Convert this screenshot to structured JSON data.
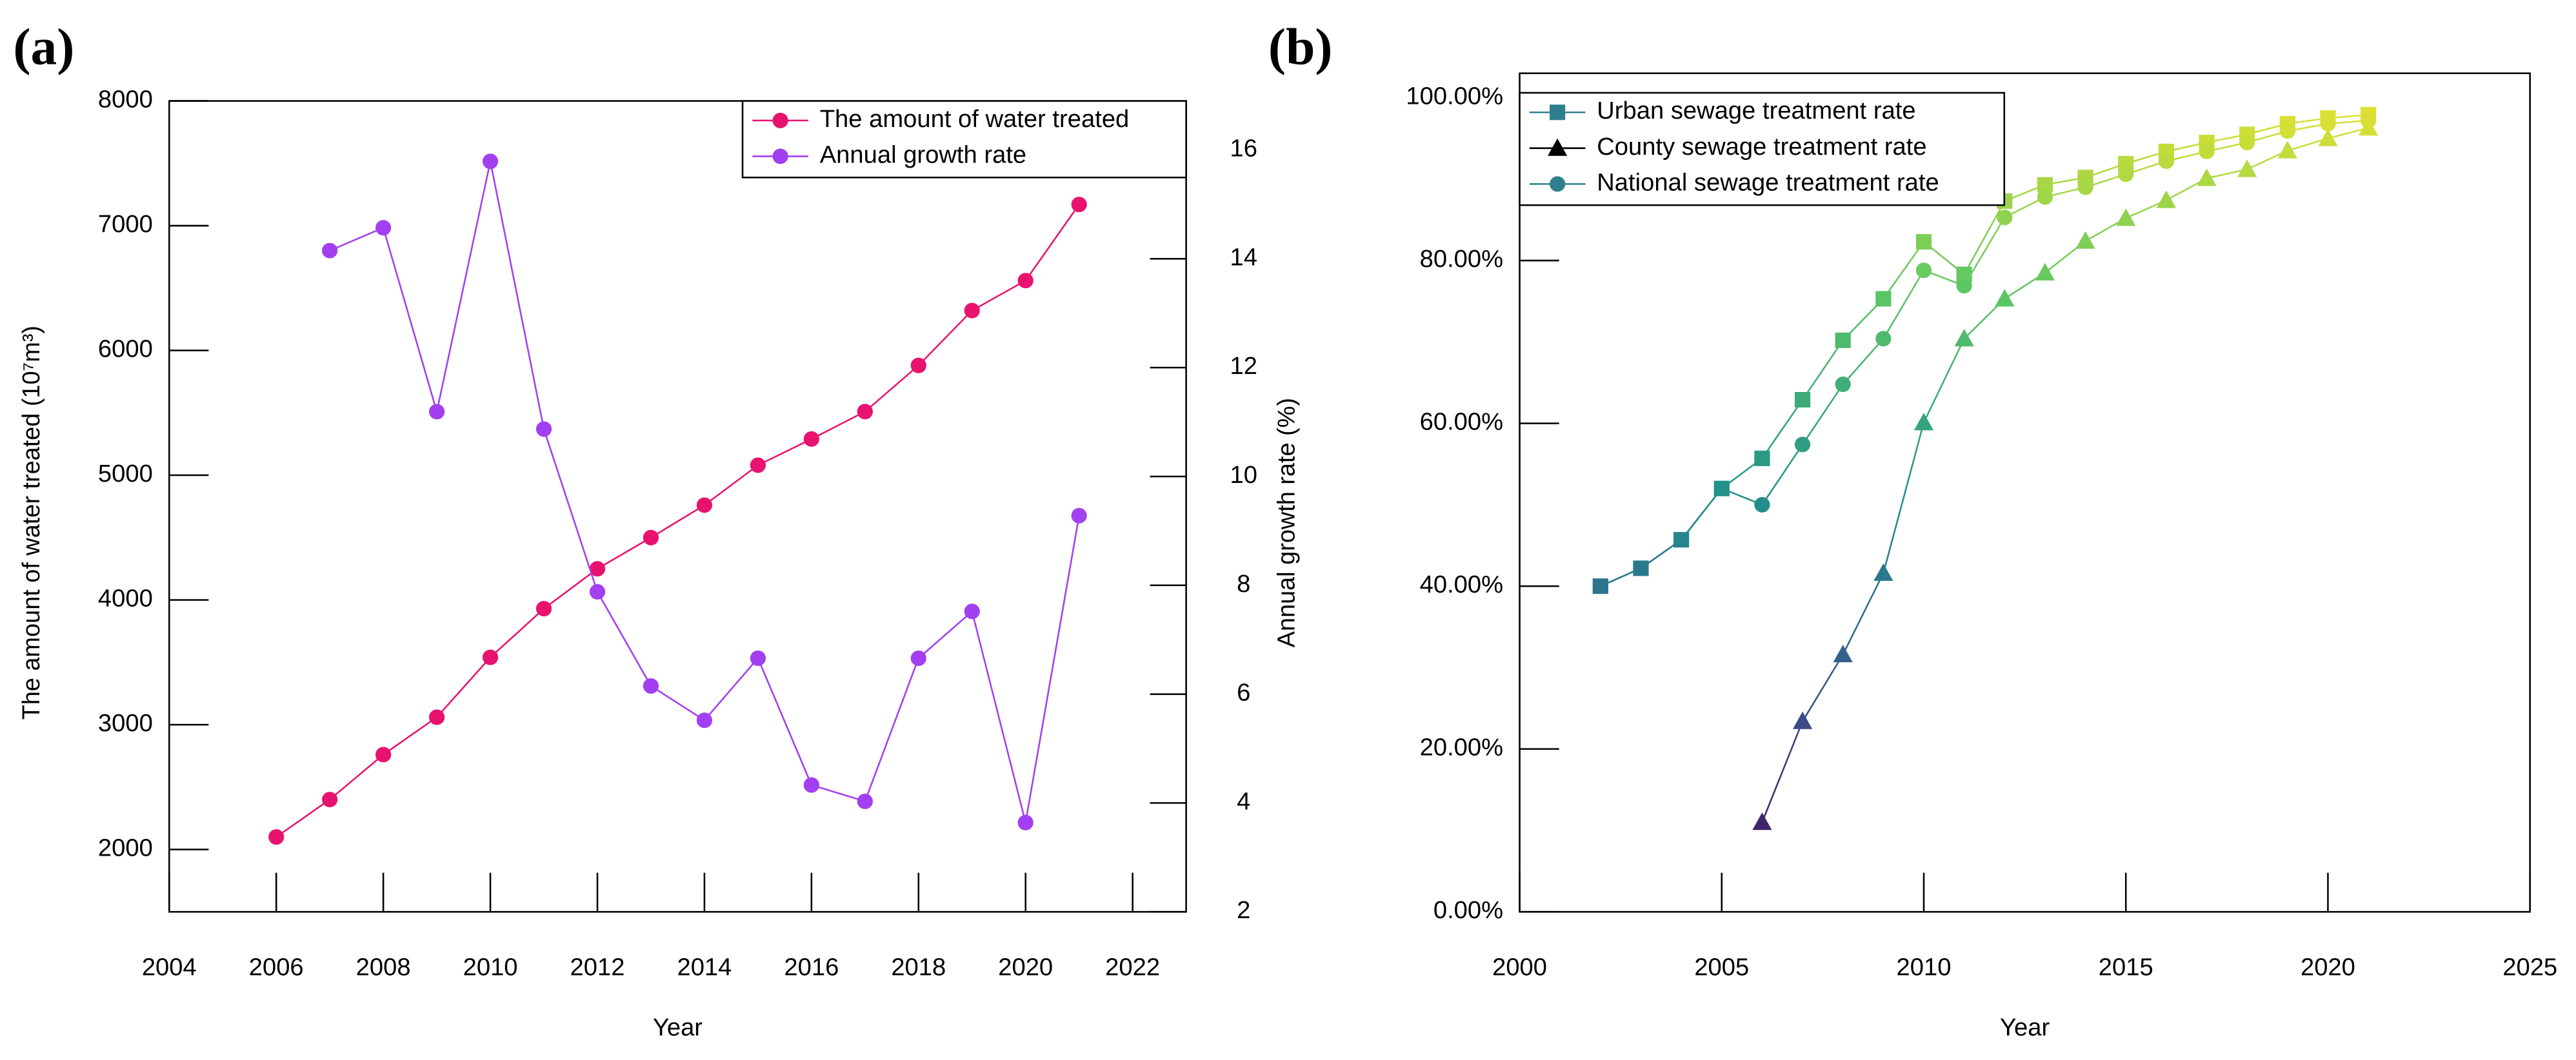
{
  "chart_data": [
    {
      "type": "line",
      "panel_label": "(a)",
      "x_label": "Year",
      "y_label": "The amount of water treated (10⁷m³)",
      "y2_label": "Annual growth rate (%)",
      "x": [
        2006,
        2007,
        2008,
        2009,
        2010,
        2011,
        2012,
        2013,
        2014,
        2015,
        2016,
        2017,
        2018,
        2019,
        2020,
        2021
      ],
      "xlim": [
        2004,
        2023
      ],
      "xticks": [
        2004,
        2006,
        2008,
        2010,
        2012,
        2014,
        2016,
        2018,
        2020,
        2022
      ],
      "ylim": [
        1500,
        8000
      ],
      "yticks": [
        2000,
        3000,
        4000,
        5000,
        6000,
        7000,
        8000
      ],
      "y2lim": [
        2,
        16.9
      ],
      "y2ticks": [
        2,
        4,
        6,
        8,
        10,
        12,
        14,
        16
      ],
      "legend": "upper-right",
      "series": [
        {
          "name": "The amount of water treated",
          "color": "#e8126f",
          "marker": "circle",
          "values": [
            2100,
            2400,
            2760,
            3060,
            3540,
            3930,
            4250,
            4500,
            4760,
            5080,
            5290,
            5510,
            5880,
            6320,
            6560,
            7170
          ]
        },
        {
          "name": "Annual growth rate",
          "color": "#a23ff0",
          "marker": "circle",
          "axis": "y2",
          "values": [
            null,
            14.15,
            14.57,
            11.19,
            15.79,
            10.87,
            7.88,
            6.15,
            5.52,
            6.66,
            4.33,
            4.03,
            6.66,
            7.52,
            3.64,
            9.28
          ]
        }
      ]
    },
    {
      "type": "line",
      "panel_label": "(b)",
      "x_label": "Year",
      "colormap": "viridis",
      "x": [
        2002,
        2003,
        2004,
        2005,
        2006,
        2007,
        2008,
        2009,
        2010,
        2011,
        2012,
        2013,
        2014,
        2015,
        2016,
        2017,
        2018,
        2019,
        2020,
        2021
      ],
      "xlim": [
        2000,
        2025
      ],
      "xticks": [
        2000,
        2005,
        2010,
        2015,
        2020,
        2025
      ],
      "ylim": [
        0,
        103
      ],
      "yticks": [
        {
          "value": 0,
          "label": "0.00%"
        },
        {
          "value": 20,
          "label": "20.00%"
        },
        {
          "value": 40,
          "label": "40.00%"
        },
        {
          "value": 60,
          "label": "60.00%"
        },
        {
          "value": 80,
          "label": "80.00%"
        },
        {
          "value": 100,
          "label": "100.00%"
        }
      ],
      "legend": "upper-left",
      "series": [
        {
          "name": "Urban sewage treatment rate",
          "color": "#2e7f8e",
          "marker": "square",
          "values": [
            40,
            42.2,
            45.7,
            52,
            55.7,
            62.9,
            70.2,
            75.3,
            82.3,
            78.3,
            87.3,
            89.3,
            90.2,
            91.9,
            93.4,
            94.5,
            95.5,
            96.8,
            97.5,
            97.9
          ]
        },
        {
          "name": "County sewage treatment rate",
          "color": "#000000",
          "marker": "triangle",
          "values": [
            null,
            null,
            null,
            null,
            11,
            23.4,
            31.6,
            41.6,
            60.1,
            70.4,
            75.3,
            78.5,
            82.4,
            85.2,
            87.4,
            90.1,
            91.2,
            93.5,
            95,
            96.3
          ]
        },
        {
          "name": "National sewage treatment rate",
          "color": "#2e7f8e",
          "marker": "circle",
          "values": [
            40,
            42.2,
            45.7,
            52,
            50,
            57.4,
            64.8,
            70.4,
            78.8,
            76.9,
            85.3,
            87.8,
            89,
            90.6,
            92.2,
            93.4,
            94.5,
            95.9,
            96.8,
            97.2
          ]
        }
      ]
    }
  ]
}
